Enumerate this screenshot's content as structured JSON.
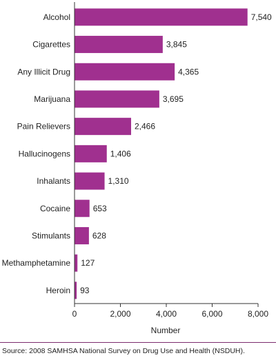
{
  "chart_data": {
    "type": "bar",
    "orientation": "horizontal",
    "categories": [
      "Alcohol",
      "Cigarettes",
      "Any Illicit Drug",
      "Marijuana",
      "Pain Relievers",
      "Hallucinogens",
      "Inhalants",
      "Cocaine",
      "Stimulants",
      "Methamphetamine",
      "Heroin"
    ],
    "values": [
      7540,
      3845,
      4365,
      3695,
      2466,
      1406,
      1310,
      653,
      628,
      127,
      93
    ],
    "value_labels": [
      "7,540",
      "3,845",
      "4,365",
      "3,695",
      "2,466",
      "1,406",
      "1,310",
      "653",
      "628",
      "127",
      "93"
    ],
    "xlabel": "Number",
    "ylabel": "",
    "xlim": [
      0,
      8000
    ],
    "xticks": [
      "0",
      "2,000",
      "4,000",
      "6,000",
      "8,000"
    ],
    "grid": false,
    "colors": {
      "bar": "#a0308f",
      "axis": "#333333"
    }
  },
  "source": "Source: 2008 SAMHSA National Survey on Drug Use and Health (NSDUH)."
}
